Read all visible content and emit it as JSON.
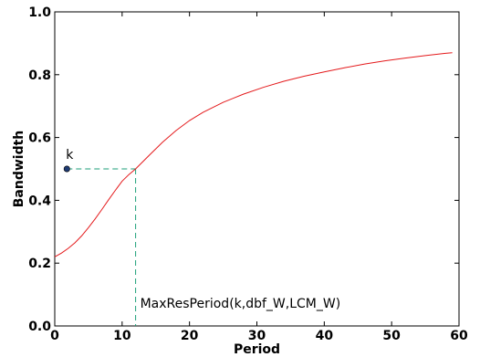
{
  "chart_data": {
    "type": "line",
    "title": "",
    "xlabel": "Period",
    "ylabel": "Bandwidth",
    "xlim": [
      0,
      60
    ],
    "ylim": [
      0.0,
      1.0
    ],
    "xticks": [
      0,
      10,
      20,
      30,
      40,
      50,
      60
    ],
    "yticks": [
      0.0,
      0.2,
      0.4,
      0.6,
      0.8,
      1.0
    ],
    "ytick_labels": [
      "0.0",
      "0.2",
      "0.4",
      "0.6",
      "0.8",
      "1.0"
    ],
    "grid": false,
    "series": [
      {
        "color": "#e41a1c",
        "x": [
          0,
          1,
          2,
          3,
          4,
          5,
          6,
          7,
          8,
          9,
          10,
          11,
          12,
          14,
          16,
          18,
          20,
          22,
          25,
          28,
          31,
          34,
          37,
          40,
          43,
          46,
          49,
          52,
          55,
          58,
          59
        ],
        "y": [
          0.22,
          0.232,
          0.247,
          0.265,
          0.287,
          0.313,
          0.341,
          0.371,
          0.402,
          0.432,
          0.461,
          0.482,
          0.5,
          0.543,
          0.585,
          0.622,
          0.654,
          0.68,
          0.712,
          0.738,
          0.76,
          0.779,
          0.795,
          0.809,
          0.822,
          0.834,
          0.844,
          0.853,
          0.861,
          0.868,
          0.87
        ]
      }
    ],
    "point": {
      "label": "k",
      "x": 1.8,
      "y": 0.5,
      "color": "#1f3b73"
    },
    "reference_lines": {
      "color": "#1b9e77",
      "style": "dashed",
      "x": 12,
      "y": 0.5,
      "label": "MaxResPeriod(k,dbf_W,LCM_W)"
    }
  }
}
